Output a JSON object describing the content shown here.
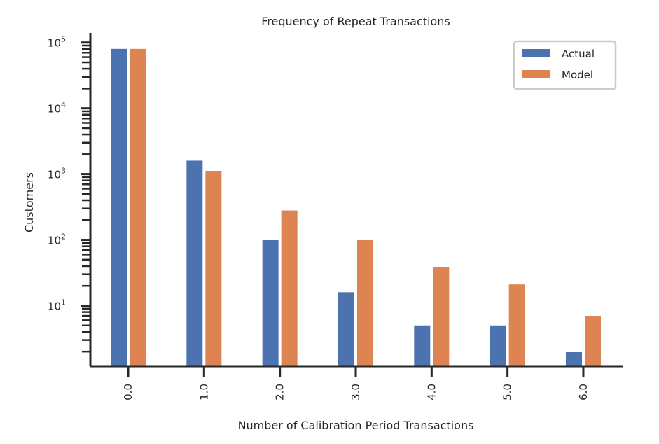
{
  "chart_data": {
    "type": "bar",
    "title": "Frequency of Repeat Transactions",
    "xlabel": "Number of Calibration Period Transactions",
    "ylabel": "Customers",
    "categories": [
      "0.0",
      "1.0",
      "2.0",
      "3.0",
      "4.0",
      "5.0",
      "6.0"
    ],
    "series": [
      {
        "name": "Actual",
        "color": "#4c72b0",
        "values": [
          80000,
          1600,
          100,
          16,
          5,
          5,
          2
        ]
      },
      {
        "name": "Model",
        "color": "#dd8452",
        "values": [
          80000,
          1120,
          280,
          100,
          39,
          21,
          7
        ]
      }
    ],
    "yscale": "log",
    "ylim": [
      1.2,
      140000
    ],
    "yticks": [
      {
        "base": "10",
        "exp": "5"
      },
      {
        "base": "10",
        "exp": "4"
      },
      {
        "base": "10",
        "exp": "3"
      },
      {
        "base": "10",
        "exp": "2"
      },
      {
        "base": "10",
        "exp": "1"
      }
    ],
    "ytick_values": [
      100000,
      10000,
      1000,
      100,
      10
    ],
    "grid": false,
    "legend_position": "top-right"
  }
}
